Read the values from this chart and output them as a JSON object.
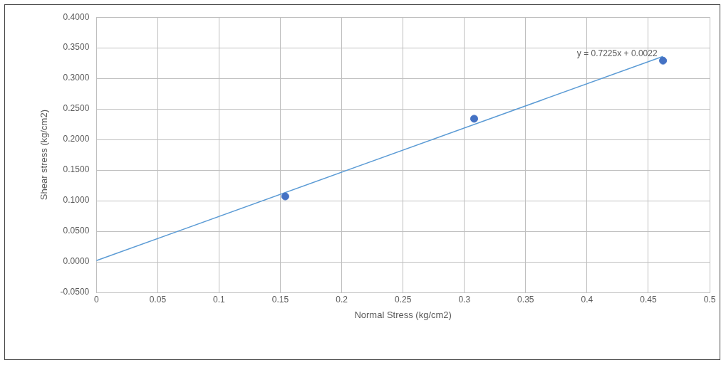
{
  "chart_data": {
    "type": "scatter",
    "xlabel": "Normal Stress (kg/cm2)",
    "ylabel": "Shear stress (kg/cm2)",
    "series": [
      {
        "type": "scatter",
        "color": "#4472c4",
        "x": [
          0.154,
          0.308,
          0.462
        ],
        "values": [
          0.107,
          0.234,
          0.329
        ],
        "marker": "circle"
      },
      {
        "type": "line",
        "color": "#5b9bd5",
        "x": [
          0,
          0.462
        ],
        "values": [
          0.002,
          0.336
        ],
        "marker": "none",
        "line_style": "solid"
      }
    ],
    "annotations": [
      {
        "text": "y = 0.7225x + 0.0022",
        "x": 0.462,
        "y": 0.336
      }
    ],
    "xlim": [
      0,
      0.5
    ],
    "xticks": [
      0,
      0.05,
      0.1,
      0.15,
      0.2,
      0.25,
      0.3,
      0.35,
      0.4,
      0.45,
      0.5
    ],
    "ylim": [
      -0.05,
      0.4
    ],
    "yticks": [
      {
        "value": -0.05,
        "label": "-0.0500"
      },
      {
        "value": 0,
        "label": "0.0000"
      },
      {
        "value": 0.05,
        "label": "0.0500"
      },
      {
        "value": 0.1,
        "label": "0.1000"
      },
      {
        "value": 0.15,
        "label": "0.1500"
      },
      {
        "value": 0.2,
        "label": "0.2000"
      },
      {
        "value": 0.25,
        "label": "0.2500"
      },
      {
        "value": 0.3,
        "label": "0.3000"
      },
      {
        "value": 0.35,
        "label": "0.3500"
      },
      {
        "value": 0.4,
        "label": "0.4000"
      }
    ],
    "grid": true,
    "legend": false
  }
}
